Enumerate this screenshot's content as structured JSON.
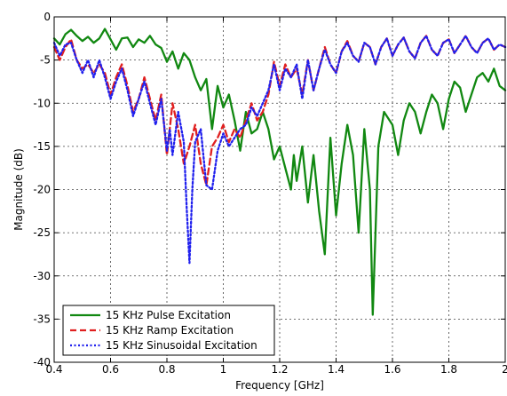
{
  "chart_data": {
    "type": "line",
    "title": "",
    "xlabel": "Frequency [GHz]",
    "ylabel": "Magnitude (dB)",
    "xlim": [
      0.4,
      2.0
    ],
    "ylim": [
      -40,
      0
    ],
    "xticks": [
      0.4,
      0.6,
      0.8,
      1.0,
      1.2,
      1.4,
      1.6,
      1.8,
      2.0
    ],
    "xtick_labels": [
      "0.4",
      "0.6",
      "0.8",
      "1",
      "1.2",
      "1.4",
      "1.6",
      "1.8",
      "2"
    ],
    "yticks": [
      0,
      -5,
      -10,
      -15,
      -20,
      -25,
      -30,
      -35,
      -40
    ],
    "ytick_labels": [
      "0",
      "-5",
      "-10",
      "-15",
      "-20",
      "-25",
      "-30",
      "-35",
      "-40"
    ],
    "grid": true,
    "legend_position": "bottom-left",
    "series": [
      {
        "name": "15 KHz Pulse Excitation",
        "color": "#118811",
        "dash": "solid",
        "points": [
          [
            0.4,
            -2.5
          ],
          [
            0.42,
            -3.2
          ],
          [
            0.44,
            -2.0
          ],
          [
            0.46,
            -1.5
          ],
          [
            0.48,
            -2.2
          ],
          [
            0.5,
            -2.8
          ],
          [
            0.52,
            -2.3
          ],
          [
            0.54,
            -3.0
          ],
          [
            0.56,
            -2.5
          ],
          [
            0.58,
            -1.4
          ],
          [
            0.6,
            -2.6
          ],
          [
            0.62,
            -3.8
          ],
          [
            0.64,
            -2.5
          ],
          [
            0.66,
            -2.4
          ],
          [
            0.68,
            -3.5
          ],
          [
            0.7,
            -2.6
          ],
          [
            0.72,
            -3.0
          ],
          [
            0.74,
            -2.2
          ],
          [
            0.76,
            -3.2
          ],
          [
            0.78,
            -3.6
          ],
          [
            0.8,
            -5.2
          ],
          [
            0.82,
            -4.0
          ],
          [
            0.84,
            -6.0
          ],
          [
            0.86,
            -4.2
          ],
          [
            0.88,
            -5.0
          ],
          [
            0.9,
            -7.0
          ],
          [
            0.92,
            -8.5
          ],
          [
            0.94,
            -7.2
          ],
          [
            0.96,
            -13.0
          ],
          [
            0.98,
            -8.0
          ],
          [
            1.0,
            -10.5
          ],
          [
            1.02,
            -9.0
          ],
          [
            1.04,
            -12.0
          ],
          [
            1.06,
            -15.5
          ],
          [
            1.08,
            -11.0
          ],
          [
            1.1,
            -13.5
          ],
          [
            1.12,
            -13.0
          ],
          [
            1.14,
            -11.0
          ],
          [
            1.16,
            -13.0
          ],
          [
            1.18,
            -16.5
          ],
          [
            1.2,
            -15.0
          ],
          [
            1.22,
            -17.5
          ],
          [
            1.24,
            -20.0
          ],
          [
            1.25,
            -16.0
          ],
          [
            1.26,
            -19.0
          ],
          [
            1.28,
            -15.0
          ],
          [
            1.3,
            -21.5
          ],
          [
            1.32,
            -16.0
          ],
          [
            1.34,
            -22.5
          ],
          [
            1.36,
            -27.5
          ],
          [
            1.38,
            -14.0
          ],
          [
            1.4,
            -23.0
          ],
          [
            1.42,
            -17.0
          ],
          [
            1.44,
            -12.5
          ],
          [
            1.46,
            -16.0
          ],
          [
            1.48,
            -25.0
          ],
          [
            1.5,
            -13.0
          ],
          [
            1.52,
            -20.0
          ],
          [
            1.53,
            -34.5
          ],
          [
            1.55,
            -15.0
          ],
          [
            1.57,
            -11.0
          ],
          [
            1.6,
            -12.5
          ],
          [
            1.62,
            -16.0
          ],
          [
            1.64,
            -12.0
          ],
          [
            1.66,
            -10.0
          ],
          [
            1.68,
            -11.0
          ],
          [
            1.7,
            -13.5
          ],
          [
            1.72,
            -11.0
          ],
          [
            1.74,
            -9.0
          ],
          [
            1.76,
            -10.0
          ],
          [
            1.78,
            -13.0
          ],
          [
            1.8,
            -9.5
          ],
          [
            1.82,
            -7.5
          ],
          [
            1.84,
            -8.2
          ],
          [
            1.86,
            -11.0
          ],
          [
            1.88,
            -9.0
          ],
          [
            1.9,
            -7.0
          ],
          [
            1.92,
            -6.5
          ],
          [
            1.94,
            -7.5
          ],
          [
            1.96,
            -6.0
          ],
          [
            1.98,
            -8.0
          ],
          [
            2.0,
            -8.5
          ]
        ]
      },
      {
        "name": "15 KHz Ramp Excitation",
        "color": "#e02020",
        "dash": "dashed",
        "points": [
          [
            0.4,
            -3.5
          ],
          [
            0.42,
            -5.0
          ],
          [
            0.44,
            -3.5
          ],
          [
            0.46,
            -2.6
          ],
          [
            0.48,
            -5.0
          ],
          [
            0.5,
            -6.0
          ],
          [
            0.52,
            -5.5
          ],
          [
            0.54,
            -6.5
          ],
          [
            0.56,
            -5.5
          ],
          [
            0.58,
            -6.5
          ],
          [
            0.6,
            -9.0
          ],
          [
            0.62,
            -7.0
          ],
          [
            0.64,
            -5.5
          ],
          [
            0.66,
            -8.0
          ],
          [
            0.68,
            -11.0
          ],
          [
            0.7,
            -9.5
          ],
          [
            0.72,
            -7.0
          ],
          [
            0.74,
            -9.5
          ],
          [
            0.76,
            -12.0
          ],
          [
            0.78,
            -9.0
          ],
          [
            0.8,
            -16.0
          ],
          [
            0.82,
            -10.0
          ],
          [
            0.84,
            -13.0
          ],
          [
            0.86,
            -17.0
          ],
          [
            0.88,
            -15.0
          ],
          [
            0.9,
            -12.5
          ],
          [
            0.92,
            -17.0
          ],
          [
            0.94,
            -19.5
          ],
          [
            0.96,
            -15.0
          ],
          [
            0.98,
            -14.0
          ],
          [
            1.0,
            -12.5
          ],
          [
            1.02,
            -14.5
          ],
          [
            1.04,
            -13.0
          ],
          [
            1.06,
            -14.0
          ],
          [
            1.08,
            -12.0
          ],
          [
            1.1,
            -10.0
          ],
          [
            1.12,
            -12.0
          ],
          [
            1.14,
            -11.0
          ],
          [
            1.16,
            -9.0
          ],
          [
            1.18,
            -5.2
          ],
          [
            1.2,
            -8.0
          ],
          [
            1.22,
            -5.5
          ],
          [
            1.24,
            -7.0
          ],
          [
            1.26,
            -6.0
          ],
          [
            1.28,
            -9.0
          ],
          [
            1.3,
            -5.0
          ],
          [
            1.32,
            -8.5
          ],
          [
            1.34,
            -6.0
          ],
          [
            1.36,
            -3.5
          ],
          [
            1.38,
            -5.5
          ],
          [
            1.4,
            -6.5
          ],
          [
            1.42,
            -4.0
          ],
          [
            1.44,
            -2.8
          ],
          [
            1.46,
            -4.5
          ],
          [
            1.48,
            -5.2
          ],
          [
            1.5,
            -3.0
          ],
          [
            1.52,
            -3.5
          ],
          [
            1.54,
            -5.5
          ],
          [
            1.56,
            -3.5
          ],
          [
            1.58,
            -2.5
          ],
          [
            1.6,
            -4.5
          ],
          [
            1.62,
            -3.2
          ],
          [
            1.64,
            -2.4
          ],
          [
            1.66,
            -4.0
          ],
          [
            1.68,
            -4.8
          ],
          [
            1.7,
            -3.0
          ],
          [
            1.72,
            -2.2
          ],
          [
            1.74,
            -3.8
          ],
          [
            1.76,
            -4.5
          ],
          [
            1.78,
            -3.0
          ],
          [
            1.8,
            -2.6
          ],
          [
            1.82,
            -4.2
          ],
          [
            1.84,
            -3.2
          ],
          [
            1.86,
            -2.2
          ],
          [
            1.88,
            -3.5
          ],
          [
            1.9,
            -4.2
          ],
          [
            1.92,
            -3.0
          ],
          [
            1.94,
            -2.5
          ],
          [
            1.96,
            -3.8
          ],
          [
            1.98,
            -3.2
          ],
          [
            2.0,
            -3.5
          ]
        ]
      },
      {
        "name": "15 KHz Sinusoidal Excitation",
        "color": "#2020ee",
        "dash": "dotted",
        "points": [
          [
            0.4,
            -3.0
          ],
          [
            0.42,
            -4.5
          ],
          [
            0.44,
            -3.2
          ],
          [
            0.46,
            -3.0
          ],
          [
            0.48,
            -5.0
          ],
          [
            0.5,
            -6.5
          ],
          [
            0.52,
            -5.0
          ],
          [
            0.54,
            -7.0
          ],
          [
            0.56,
            -5.0
          ],
          [
            0.58,
            -7.0
          ],
          [
            0.6,
            -9.5
          ],
          [
            0.62,
            -7.5
          ],
          [
            0.64,
            -6.0
          ],
          [
            0.66,
            -8.5
          ],
          [
            0.68,
            -11.5
          ],
          [
            0.7,
            -9.5
          ],
          [
            0.72,
            -7.5
          ],
          [
            0.74,
            -10.0
          ],
          [
            0.76,
            -12.5
          ],
          [
            0.78,
            -9.5
          ],
          [
            0.8,
            -15.5
          ],
          [
            0.81,
            -13.0
          ],
          [
            0.82,
            -16.0
          ],
          [
            0.84,
            -11.0
          ],
          [
            0.86,
            -14.5
          ],
          [
            0.87,
            -22.0
          ],
          [
            0.88,
            -28.5
          ],
          [
            0.89,
            -20.0
          ],
          [
            0.9,
            -14.5
          ],
          [
            0.92,
            -13.0
          ],
          [
            0.94,
            -19.5
          ],
          [
            0.96,
            -20.0
          ],
          [
            0.98,
            -15.5
          ],
          [
            1.0,
            -13.5
          ],
          [
            1.02,
            -15.0
          ],
          [
            1.04,
            -14.0
          ],
          [
            1.06,
            -13.0
          ],
          [
            1.08,
            -12.5
          ],
          [
            1.1,
            -10.5
          ],
          [
            1.12,
            -11.5
          ],
          [
            1.14,
            -10.0
          ],
          [
            1.16,
            -8.5
          ],
          [
            1.18,
            -5.5
          ],
          [
            1.2,
            -8.5
          ],
          [
            1.22,
            -6.0
          ],
          [
            1.24,
            -7.0
          ],
          [
            1.26,
            -5.5
          ],
          [
            1.28,
            -9.5
          ],
          [
            1.3,
            -5.0
          ],
          [
            1.32,
            -8.5
          ],
          [
            1.34,
            -6.0
          ],
          [
            1.36,
            -3.8
          ],
          [
            1.38,
            -5.5
          ],
          [
            1.4,
            -6.5
          ],
          [
            1.42,
            -4.0
          ],
          [
            1.44,
            -3.0
          ],
          [
            1.46,
            -4.5
          ],
          [
            1.48,
            -5.2
          ],
          [
            1.5,
            -3.0
          ],
          [
            1.52,
            -3.5
          ],
          [
            1.54,
            -5.5
          ],
          [
            1.56,
            -3.5
          ],
          [
            1.58,
            -2.5
          ],
          [
            1.6,
            -4.5
          ],
          [
            1.62,
            -3.2
          ],
          [
            1.64,
            -2.4
          ],
          [
            1.66,
            -4.0
          ],
          [
            1.68,
            -4.8
          ],
          [
            1.7,
            -3.0
          ],
          [
            1.72,
            -2.2
          ],
          [
            1.74,
            -3.8
          ],
          [
            1.76,
            -4.5
          ],
          [
            1.78,
            -3.0
          ],
          [
            1.8,
            -2.6
          ],
          [
            1.82,
            -4.2
          ],
          [
            1.84,
            -3.2
          ],
          [
            1.86,
            -2.2
          ],
          [
            1.88,
            -3.5
          ],
          [
            1.9,
            -4.2
          ],
          [
            1.92,
            -3.0
          ],
          [
            1.94,
            -2.5
          ],
          [
            1.96,
            -3.8
          ],
          [
            1.98,
            -3.2
          ],
          [
            2.0,
            -3.5
          ]
        ]
      }
    ]
  }
}
